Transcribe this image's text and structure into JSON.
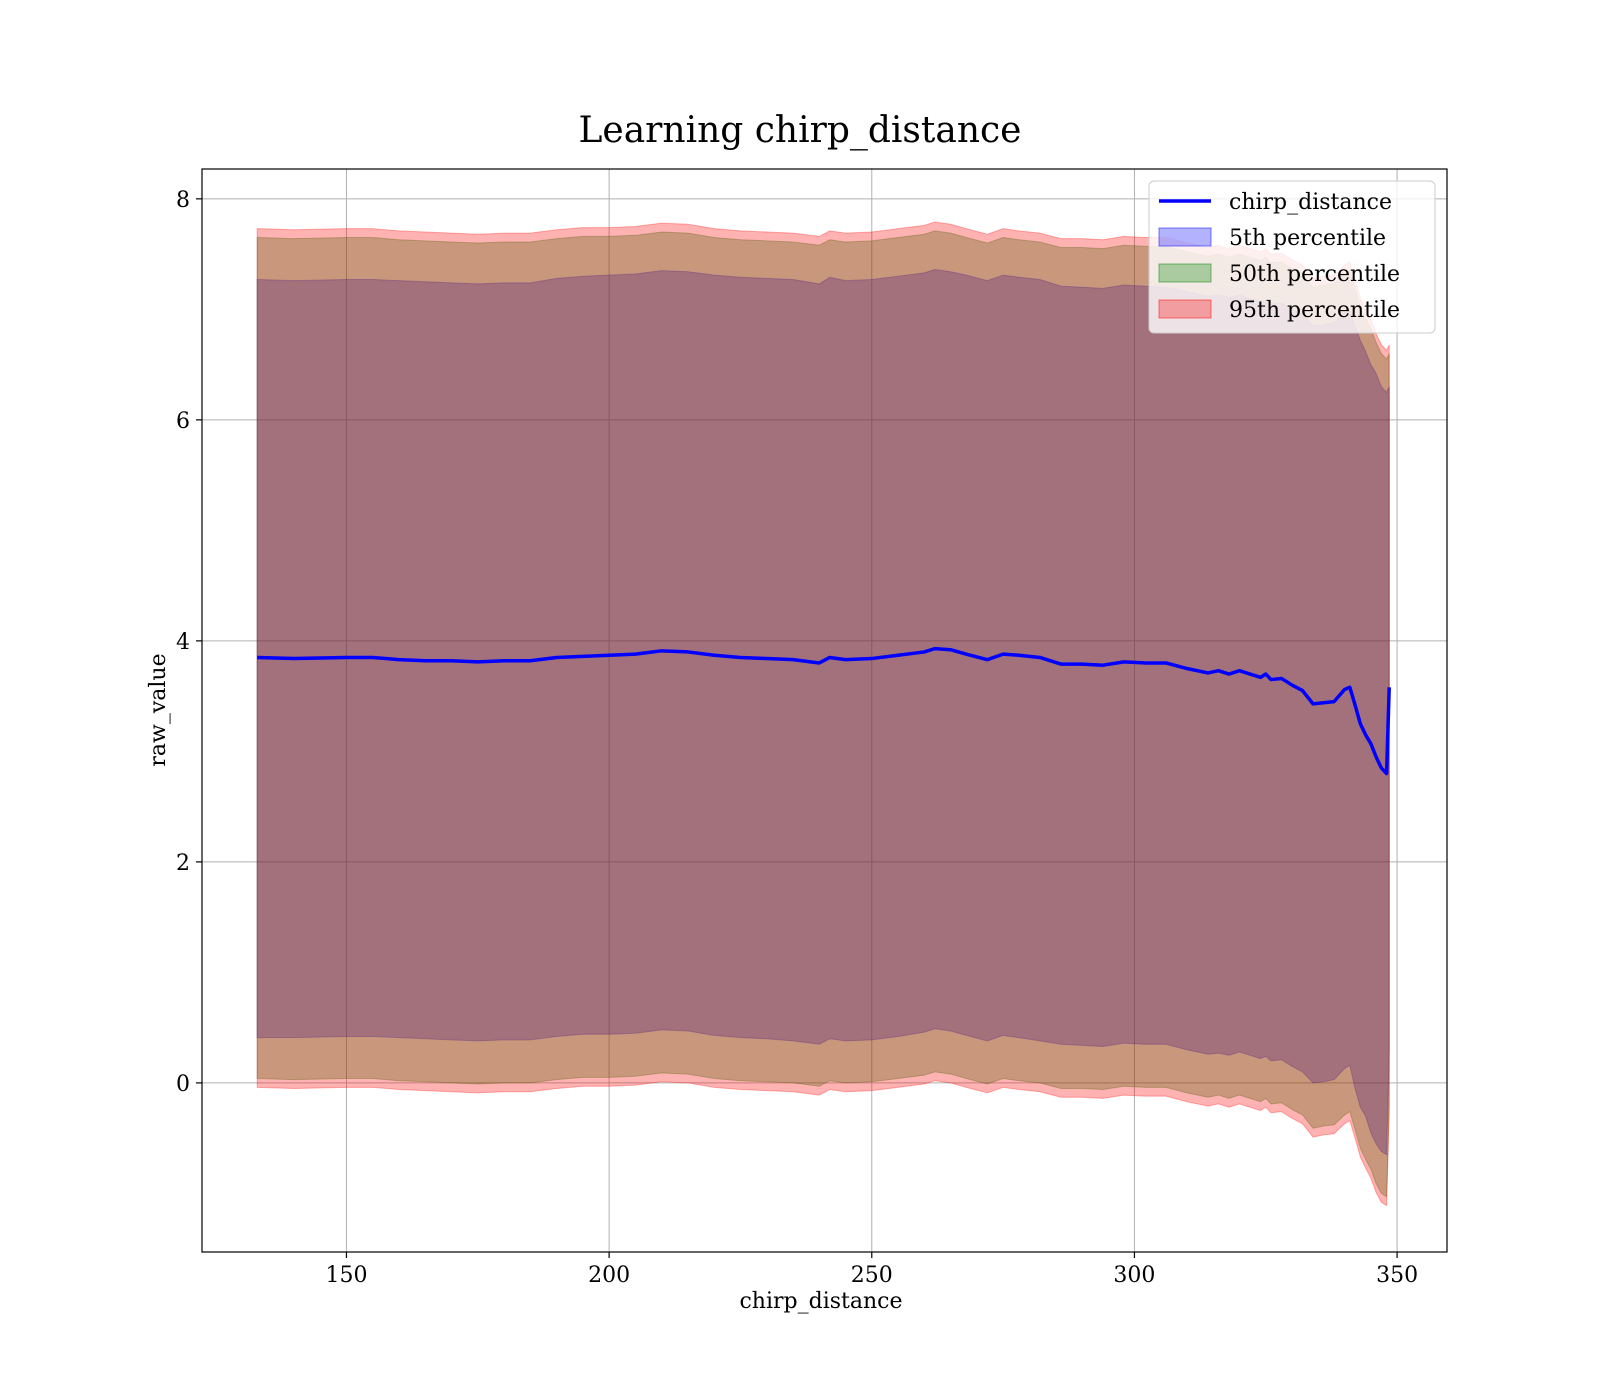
{
  "chart_data": {
    "type": "area",
    "title": "Learning chirp_distance",
    "xlabel": "chirp_distance",
    "ylabel": "raw_value",
    "xlim": [
      122.5,
      359.5
    ],
    "ylim": [
      -1.53,
      8.27
    ],
    "xticks": [
      150,
      200,
      250,
      300,
      350
    ],
    "yticks": [
      0,
      2,
      4,
      6,
      8
    ],
    "grid": true,
    "legend_position": "top-right",
    "x": [
      133,
      140,
      150,
      155,
      160,
      165,
      170,
      175,
      180,
      185,
      190,
      195,
      200,
      205,
      210,
      215,
      220,
      225,
      230,
      235,
      240,
      242,
      245,
      250,
      255,
      260,
      262,
      265,
      268,
      272,
      275,
      278,
      282,
      286,
      290,
      294,
      298,
      302,
      306,
      310,
      314,
      316,
      318,
      320,
      322,
      324,
      325,
      326,
      328,
      330,
      332,
      334,
      336,
      338,
      340,
      341,
      342,
      343,
      344,
      345,
      346,
      347,
      348,
      348.5
    ],
    "series": [
      {
        "name": "chirp_distance",
        "kind": "line",
        "color": "#0000ff",
        "values": [
          3.85,
          3.84,
          3.85,
          3.85,
          3.83,
          3.82,
          3.82,
          3.81,
          3.82,
          3.82,
          3.85,
          3.86,
          3.87,
          3.88,
          3.91,
          3.9,
          3.87,
          3.85,
          3.84,
          3.83,
          3.8,
          3.85,
          3.83,
          3.84,
          3.87,
          3.9,
          3.93,
          3.92,
          3.88,
          3.83,
          3.88,
          3.87,
          3.85,
          3.79,
          3.79,
          3.78,
          3.81,
          3.8,
          3.8,
          3.75,
          3.71,
          3.73,
          3.7,
          3.73,
          3.7,
          3.67,
          3.7,
          3.65,
          3.66,
          3.6,
          3.55,
          3.43,
          3.44,
          3.45,
          3.56,
          3.58,
          3.42,
          3.25,
          3.15,
          3.07,
          2.95,
          2.85,
          2.8,
          3.58
        ]
      },
      {
        "name": "5th percentile",
        "kind": "band",
        "color": "#0000ff",
        "opacity": 0.3,
        "upper": [
          7.27,
          7.26,
          7.27,
          7.27,
          7.26,
          7.25,
          7.24,
          7.23,
          7.24,
          7.24,
          7.28,
          7.3,
          7.31,
          7.32,
          7.35,
          7.34,
          7.31,
          7.29,
          7.28,
          7.27,
          7.23,
          7.29,
          7.26,
          7.27,
          7.3,
          7.33,
          7.36,
          7.34,
          7.31,
          7.26,
          7.31,
          7.29,
          7.27,
          7.21,
          7.2,
          7.19,
          7.22,
          7.21,
          7.2,
          7.16,
          7.12,
          7.13,
          7.11,
          7.13,
          7.1,
          7.07,
          7.09,
          7.05,
          7.06,
          7.0,
          6.95,
          6.85,
          6.86,
          6.88,
          6.97,
          6.99,
          6.85,
          6.72,
          6.62,
          6.5,
          6.42,
          6.3,
          6.25,
          6.3
        ],
        "lower": [
          0.41,
          0.41,
          0.42,
          0.42,
          0.41,
          0.4,
          0.39,
          0.38,
          0.39,
          0.39,
          0.42,
          0.44,
          0.44,
          0.45,
          0.48,
          0.47,
          0.43,
          0.41,
          0.4,
          0.38,
          0.35,
          0.4,
          0.38,
          0.39,
          0.42,
          0.46,
          0.49,
          0.47,
          0.43,
          0.38,
          0.43,
          0.41,
          0.38,
          0.35,
          0.34,
          0.33,
          0.36,
          0.35,
          0.35,
          0.3,
          0.26,
          0.27,
          0.25,
          0.28,
          0.25,
          0.22,
          0.24,
          0.2,
          0.21,
          0.15,
          0.1,
          0.0,
          0.01,
          0.03,
          0.13,
          0.16,
          -0.05,
          -0.22,
          -0.3,
          -0.45,
          -0.55,
          -0.62,
          -0.65,
          0.3
        ]
      },
      {
        "name": "50th percentile",
        "kind": "band",
        "color": "#008000",
        "opacity": 0.3,
        "upper": [
          7.65,
          7.64,
          7.65,
          7.65,
          7.63,
          7.62,
          7.61,
          7.6,
          7.61,
          7.61,
          7.64,
          7.66,
          7.66,
          7.67,
          7.7,
          7.69,
          7.65,
          7.63,
          7.62,
          7.61,
          7.58,
          7.63,
          7.61,
          7.62,
          7.65,
          7.68,
          7.71,
          7.69,
          7.65,
          7.6,
          7.65,
          7.63,
          7.61,
          7.56,
          7.56,
          7.55,
          7.58,
          7.57,
          7.57,
          7.52,
          7.48,
          7.5,
          7.47,
          7.5,
          7.47,
          7.44,
          7.47,
          7.42,
          7.43,
          7.37,
          7.32,
          7.2,
          7.22,
          7.23,
          7.32,
          7.35,
          7.19,
          7.02,
          6.92,
          6.83,
          6.7,
          6.6,
          6.55,
          6.6
        ],
        "lower": [
          0.04,
          0.03,
          0.04,
          0.04,
          0.02,
          0.01,
          0.0,
          -0.01,
          0.0,
          0.0,
          0.03,
          0.05,
          0.05,
          0.06,
          0.09,
          0.08,
          0.04,
          0.02,
          0.01,
          0.0,
          -0.03,
          0.02,
          0.0,
          0.01,
          0.04,
          0.07,
          0.1,
          0.08,
          0.04,
          -0.01,
          0.04,
          0.02,
          0.0,
          -0.05,
          -0.05,
          -0.06,
          -0.03,
          -0.04,
          -0.04,
          -0.09,
          -0.13,
          -0.11,
          -0.14,
          -0.11,
          -0.14,
          -0.17,
          -0.14,
          -0.19,
          -0.18,
          -0.24,
          -0.29,
          -0.41,
          -0.39,
          -0.38,
          -0.29,
          -0.26,
          -0.42,
          -0.59,
          -0.69,
          -0.78,
          -0.91,
          -1.0,
          -1.03,
          -0.2
        ]
      },
      {
        "name": "95th percentile",
        "kind": "band",
        "color": "#ff0000",
        "opacity": 0.3,
        "upper": [
          7.73,
          7.72,
          7.73,
          7.73,
          7.71,
          7.7,
          7.69,
          7.68,
          7.69,
          7.69,
          7.72,
          7.74,
          7.74,
          7.75,
          7.78,
          7.77,
          7.73,
          7.71,
          7.7,
          7.69,
          7.66,
          7.71,
          7.69,
          7.7,
          7.73,
          7.76,
          7.79,
          7.77,
          7.73,
          7.68,
          7.73,
          7.71,
          7.69,
          7.64,
          7.64,
          7.63,
          7.66,
          7.65,
          7.65,
          7.6,
          7.56,
          7.58,
          7.55,
          7.58,
          7.55,
          7.52,
          7.55,
          7.5,
          7.51,
          7.45,
          7.4,
          7.28,
          7.3,
          7.31,
          7.4,
          7.43,
          7.27,
          7.1,
          7.0,
          6.91,
          6.78,
          6.68,
          6.63,
          6.68
        ],
        "lower": [
          -0.04,
          -0.05,
          -0.04,
          -0.04,
          -0.06,
          -0.07,
          -0.08,
          -0.09,
          -0.08,
          -0.08,
          -0.05,
          -0.03,
          -0.03,
          -0.02,
          0.01,
          0.0,
          -0.04,
          -0.06,
          -0.07,
          -0.08,
          -0.11,
          -0.06,
          -0.08,
          -0.07,
          -0.04,
          -0.01,
          0.02,
          0.0,
          -0.04,
          -0.09,
          -0.04,
          -0.06,
          -0.08,
          -0.13,
          -0.13,
          -0.14,
          -0.11,
          -0.12,
          -0.12,
          -0.17,
          -0.21,
          -0.19,
          -0.22,
          -0.19,
          -0.22,
          -0.25,
          -0.22,
          -0.27,
          -0.26,
          -0.32,
          -0.37,
          -0.49,
          -0.47,
          -0.46,
          -0.37,
          -0.34,
          -0.5,
          -0.67,
          -0.77,
          -0.86,
          -0.99,
          -1.08,
          -1.11,
          -0.28
        ]
      }
    ]
  }
}
